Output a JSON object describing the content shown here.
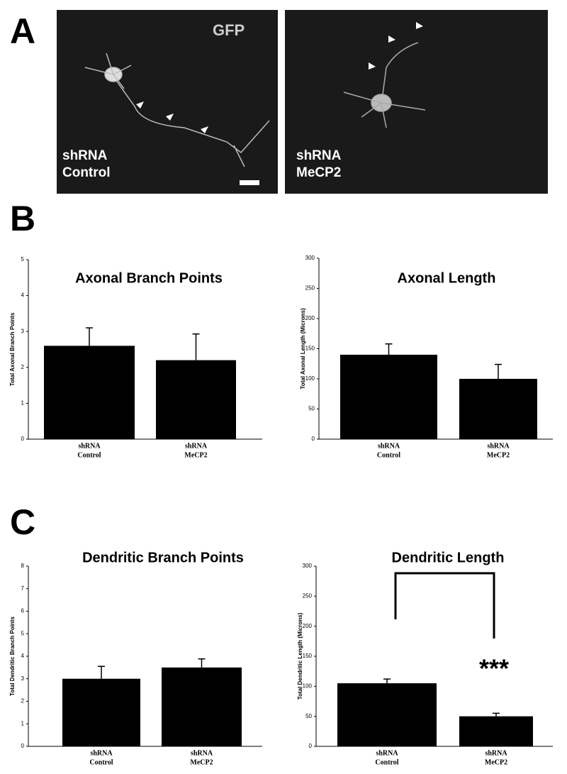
{
  "panels": [
    "A",
    "B",
    "C"
  ],
  "images": [
    {
      "marker": "GFP",
      "label": [
        "shRNA",
        "Control"
      ]
    },
    {
      "label": [
        "shRNA",
        "MeCP2"
      ]
    }
  ],
  "chart_data": [
    {
      "type": "bar",
      "title": "Axonal Branch Points",
      "y_label": "Total Axonal Branch Points",
      "categories": [
        [
          "shRNA",
          "Control"
        ],
        [
          "shRNA",
          "MeCP2"
        ]
      ],
      "values": [
        2.6,
        2.2
      ],
      "errors": [
        0.5,
        0.73
      ],
      "color": "#000000",
      "ylim": [
        0,
        5
      ],
      "yticks": [
        0,
        1,
        2,
        3,
        4,
        5
      ]
    },
    {
      "type": "bar",
      "title": "Axonal Length",
      "y_label": "Total Axonal Length (Microns)",
      "categories": [
        [
          "shRNA",
          "Control"
        ],
        [
          "shRNA",
          "MeCP2"
        ]
      ],
      "values": [
        140,
        100
      ],
      "errors": [
        18,
        24
      ],
      "color": "#000000",
      "ylim": [
        0,
        300
      ],
      "yticks": [
        0,
        50,
        100,
        150,
        200,
        250,
        300
      ]
    },
    {
      "type": "bar",
      "title": "Dendritic Branch Points",
      "y_label": "Total Dendritic Branch Points",
      "categories": [
        [
          "shRNA",
          "Control"
        ],
        [
          "shRNA",
          "MeCP2"
        ]
      ],
      "values": [
        3.0,
        3.5
      ],
      "errors": [
        0.55,
        0.38
      ],
      "color": "#000000",
      "ylim": [
        0,
        8
      ],
      "yticks": [
        0,
        1,
        2,
        3,
        4,
        5,
        6,
        7,
        8
      ]
    },
    {
      "type": "bar",
      "title": "Dendritic Length",
      "y_label": "Total Dendritic Length (Microns)",
      "categories": [
        [
          "shRNA",
          "Control"
        ],
        [
          "shRNA",
          "MeCP2"
        ]
      ],
      "values": [
        105,
        50
      ],
      "errors": [
        7,
        5
      ],
      "color": "#000000",
      "ylim": [
        0,
        300
      ],
      "yticks": [
        0,
        50,
        100,
        150,
        200,
        250,
        300
      ],
      "annotation": "***"
    }
  ]
}
